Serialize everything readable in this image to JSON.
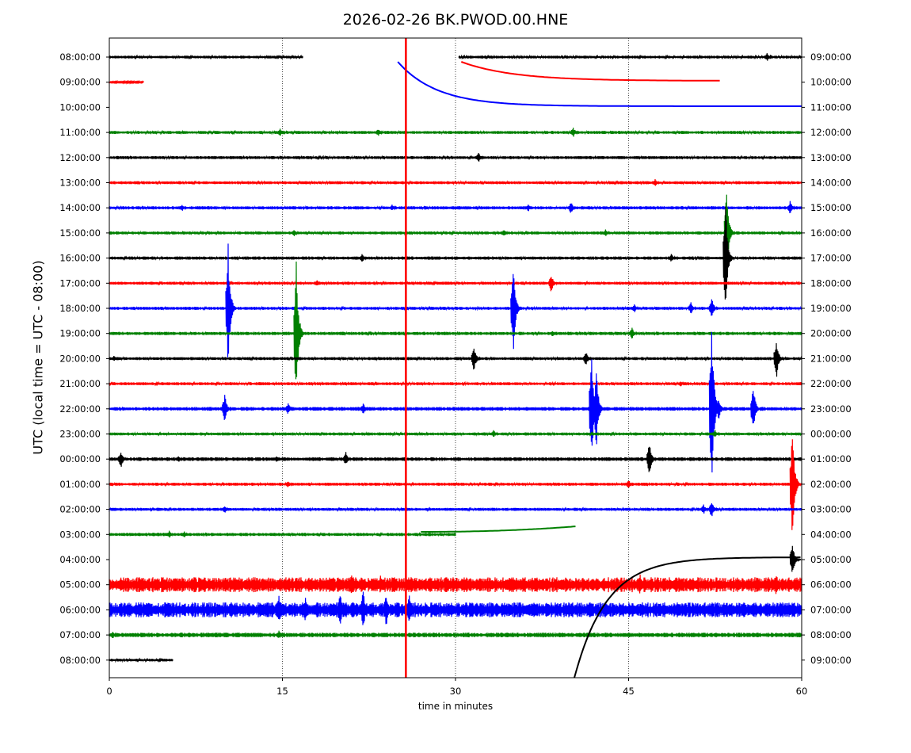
{
  "chart_data": {
    "type": "line",
    "title": "2026-02-26 BK.PWOD.00.HNE",
    "xlabel": "time in minutes",
    "ylabel": "UTC (local time = UTC - 08:00)",
    "xlim": [
      0,
      60
    ],
    "x_ticks": [
      "0",
      "15",
      "30",
      "45",
      "60"
    ],
    "x_tick_values": [
      0,
      15,
      30,
      45,
      60
    ],
    "grid": "vertical dotted lines at x ticks",
    "trace_colors": [
      "#000000",
      "#ff0000",
      "#0000ff",
      "#008000"
    ],
    "rows": [
      {
        "left": "08:00:00",
        "right": "09:00:00",
        "color": "#000000",
        "noise": 1.2,
        "segments": [
          [
            0,
            16.8
          ],
          [
            30.3,
            60
          ]
        ],
        "events": [
          [
            57,
            6
          ]
        ]
      },
      {
        "left": "09:00:00",
        "right": "10:00:00",
        "color": "#ff0000",
        "noise": 0.6,
        "segments": [
          [
            0,
            3
          ]
        ],
        "events": []
      },
      {
        "left": "10:00:00",
        "right": "11:00:00",
        "color": "#0000ff",
        "noise": 0.5,
        "segments": [],
        "events": []
      },
      {
        "left": "11:00:00",
        "right": "12:00:00",
        "color": "#008000",
        "noise": 1.3,
        "segments": [
          [
            0,
            60
          ]
        ],
        "events": [
          [
            14.8,
            5
          ],
          [
            23.3,
            5
          ],
          [
            40.2,
            7
          ]
        ]
      },
      {
        "left": "12:00:00",
        "right": "13:00:00",
        "color": "#000000",
        "noise": 1.3,
        "segments": [
          [
            0,
            60
          ]
        ],
        "events": [
          [
            32,
            7
          ]
        ]
      },
      {
        "left": "13:00:00",
        "right": "14:00:00",
        "color": "#ff0000",
        "noise": 1.3,
        "segments": [
          [
            0,
            60
          ]
        ],
        "events": [
          [
            47.3,
            5
          ]
        ]
      },
      {
        "left": "14:00:00",
        "right": "15:00:00",
        "color": "#0000ff",
        "noise": 1.4,
        "segments": [
          [
            0,
            60
          ]
        ],
        "events": [
          [
            6.3,
            5
          ],
          [
            24.5,
            4
          ],
          [
            36.3,
            5
          ],
          [
            40,
            8
          ],
          [
            59,
            9
          ]
        ]
      },
      {
        "left": "15:00:00",
        "right": "16:00:00",
        "color": "#008000",
        "noise": 1.3,
        "segments": [
          [
            0,
            60
          ]
        ],
        "events": [
          [
            53.5,
            58
          ],
          [
            16,
            5
          ],
          [
            34.2,
            5
          ],
          [
            43,
            5
          ]
        ]
      },
      {
        "left": "16:00:00",
        "right": "17:00:00",
        "color": "#000000",
        "noise": 1.4,
        "segments": [
          [
            0,
            60
          ]
        ],
        "events": [
          [
            53.4,
            75
          ],
          [
            21.9,
            6
          ],
          [
            48.7,
            6
          ]
        ]
      },
      {
        "left": "17:00:00",
        "right": "18:00:00",
        "color": "#ff0000",
        "noise": 1.3,
        "segments": [
          [
            0,
            60
          ]
        ],
        "events": [
          [
            38.3,
            13
          ],
          [
            18,
            4
          ]
        ]
      },
      {
        "left": "18:00:00",
        "right": "19:00:00",
        "color": "#0000ff",
        "noise": 1.3,
        "segments": [
          [
            0,
            60
          ]
        ],
        "events": [
          [
            10.3,
            84
          ],
          [
            35,
            65
          ],
          [
            52.2,
            14
          ],
          [
            50.4,
            8
          ],
          [
            45.5,
            6
          ]
        ]
      },
      {
        "left": "19:00:00",
        "right": "20:00:00",
        "color": "#008000",
        "noise": 1.4,
        "segments": [
          [
            0,
            60
          ]
        ],
        "events": [
          [
            16.2,
            94
          ],
          [
            45.3,
            8
          ],
          [
            38.4,
            4
          ]
        ]
      },
      {
        "left": "20:00:00",
        "right": "21:00:00",
        "color": "#000000",
        "noise": 1.3,
        "segments": [
          [
            0,
            60
          ]
        ],
        "events": [
          [
            31.6,
            17
          ],
          [
            57.8,
            28
          ],
          [
            41.3,
            10
          ],
          [
            0.4,
            4
          ]
        ]
      },
      {
        "left": "21:00:00",
        "right": "22:00:00",
        "color": "#ff0000",
        "noise": 1.3,
        "segments": [
          [
            0,
            60
          ]
        ],
        "events": [
          [
            49.5,
            4
          ]
        ]
      },
      {
        "left": "22:00:00",
        "right": "23:00:00",
        "color": "#0000ff",
        "noise": 1.6,
        "segments": [
          [
            0,
            60
          ]
        ],
        "events": [
          [
            41.8,
            77
          ],
          [
            42.2,
            57
          ],
          [
            52.2,
            124
          ],
          [
            52.8,
            16
          ],
          [
            55.8,
            33
          ],
          [
            10,
            19
          ],
          [
            15.5,
            8
          ],
          [
            22,
            8
          ]
        ]
      },
      {
        "left": "23:00:00",
        "right": "00:00:00",
        "color": "#008000",
        "noise": 1.3,
        "segments": [
          [
            0,
            60
          ]
        ],
        "events": [
          [
            33.3,
            5
          ],
          [
            52.5,
            5
          ]
        ]
      },
      {
        "left": "00:00:00",
        "right": "01:00:00",
        "color": "#000000",
        "noise": 1.6,
        "segments": [
          [
            0,
            60
          ]
        ],
        "events": [
          [
            1,
            12
          ],
          [
            20.5,
            9
          ],
          [
            46.8,
            22
          ],
          [
            6,
            5
          ],
          [
            14.5,
            4
          ]
        ]
      },
      {
        "left": "01:00:00",
        "right": "02:00:00",
        "color": "#ff0000",
        "noise": 1.3,
        "segments": [
          [
            0,
            60
          ]
        ],
        "events": [
          [
            59.2,
            78
          ],
          [
            15.5,
            5
          ],
          [
            45,
            6
          ]
        ]
      },
      {
        "left": "02:00:00",
        "right": "03:00:00",
        "color": "#0000ff",
        "noise": 1.3,
        "segments": [
          [
            0,
            60
          ]
        ],
        "events": [
          [
            52.2,
            12
          ],
          [
            10,
            5
          ],
          [
            51.5,
            7
          ]
        ]
      },
      {
        "left": "03:00:00",
        "right": "04:00:00",
        "color": "#008000",
        "noise": 1.4,
        "segments": [
          [
            0,
            30
          ]
        ],
        "events": [
          [
            5.2,
            5
          ],
          [
            6.5,
            4
          ]
        ]
      },
      {
        "left": "04:00:00",
        "right": "05:00:00",
        "color": "#000000",
        "noise": 0.8,
        "segments": [],
        "events": [
          [
            59.2,
            24
          ]
        ]
      },
      {
        "left": "05:00:00",
        "right": "06:00:00",
        "color": "#ff0000",
        "noise": 6.5,
        "segments": [
          [
            0,
            60
          ]
        ],
        "events": [
          [
            1,
            12
          ],
          [
            21,
            16
          ],
          [
            23.5,
            12
          ],
          [
            46,
            15
          ],
          [
            57.8,
            15
          ]
        ]
      },
      {
        "left": "06:00:00",
        "right": "07:00:00",
        "color": "#0000ff",
        "noise": 6.5,
        "segments": [
          [
            0,
            60
          ]
        ],
        "events": [
          [
            20,
            24
          ],
          [
            22,
            28
          ],
          [
            24,
            24
          ],
          [
            26,
            20
          ],
          [
            14.7,
            22
          ],
          [
            17,
            18
          ],
          [
            3.4,
            14
          ]
        ]
      },
      {
        "left": "07:00:00",
        "right": "08:00:00",
        "color": "#008000",
        "noise": 2.0,
        "segments": [
          [
            0,
            60
          ]
        ],
        "events": [
          [
            0.3,
            5
          ],
          [
            14.7,
            6
          ]
        ]
      },
      {
        "left": "08:00:00",
        "right": "09:00:00",
        "color": "#000000",
        "noise": 1.2,
        "segments": [
          [
            0,
            5.5
          ]
        ],
        "events": []
      }
    ],
    "annotations": [
      {
        "description": "blue decaying curve from 25 to 60 min",
        "x_start": 25,
        "x_end": 60
      },
      {
        "description": "red decaying curve from 30.5 to 53 min",
        "x_start": 30.5,
        "x_end": 53
      },
      {
        "description": "green drift curve rising from 27 to 40.5 min",
        "x_start": 27,
        "x_end": 40.5
      },
      {
        "description": "black rising curve from 40.3 to 60 min",
        "x_start": 40.3,
        "x_end": 60
      },
      {
        "description": "red vertical line at about 25.7 min spanning whole plot",
        "x": 25.7
      }
    ]
  }
}
